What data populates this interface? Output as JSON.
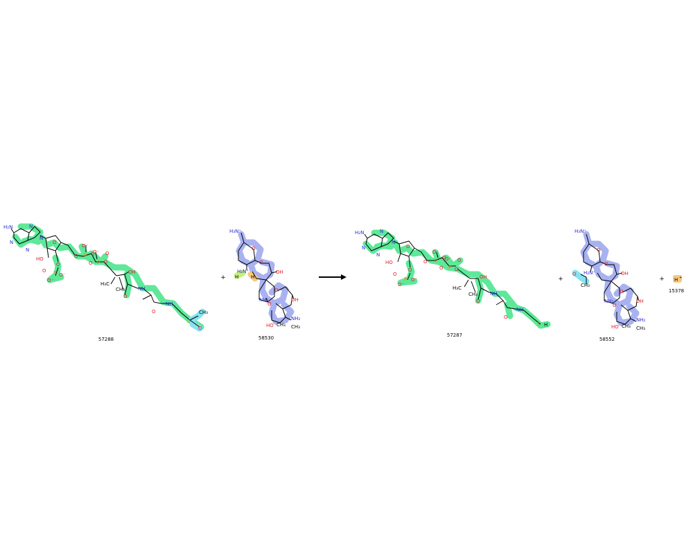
{
  "reaction": {
    "plus_sign": "+",
    "compounds": [
      {
        "id": "57288",
        "role": "reactant"
      },
      {
        "id": "58530",
        "role": "reactant"
      },
      {
        "id": "57287",
        "role": "product"
      },
      {
        "id": "58552",
        "role": "product"
      },
      {
        "id": "15378",
        "role": "product",
        "formula_symbol": "H",
        "formula_charge": "+"
      }
    ]
  },
  "atom_labels": {
    "h2n": "H₂N",
    "n": "N",
    "ho": "HO",
    "oh": "OH",
    "o": "O",
    "p": "P",
    "o_minus": "O⁻",
    "h3c": "H₃C",
    "ch3": "CH₃",
    "nh": "NH",
    "s": "S",
    "h3n_plus": "H₃N⁺",
    "h2n_plus": "H₂N⁺",
    "nh2": "NH₂",
    "h": "H"
  },
  "colors": {
    "highlight_green": "#5ee89a",
    "highlight_blue": "#a9b2f0",
    "highlight_cyan": "#86e3ef",
    "highlight_yellowgreen": "#c4f07a",
    "highlight_orange": "#f7c97f",
    "nitrogen": "#2a2ad0",
    "oxygen": "#e0202a",
    "phosphorus": "#f08000"
  }
}
